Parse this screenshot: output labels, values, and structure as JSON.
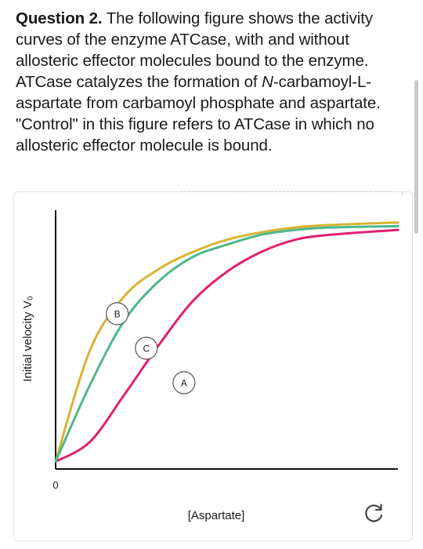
{
  "question": {
    "label": "Question 2.",
    "text_before": " The following figure shows the activity curves of the enzyme ATCase, with and without allosteric effector molecules bound to the enzyme. ATCase catalyzes the formation of ",
    "italic_n": "N",
    "text_after": "-carbamoyl-L-aspartate from carbamoyl phosphate and aspartate. \"Control\" in this figure refers to ATCase in which no allosteric effector molecule is bound."
  },
  "chart_data": {
    "type": "line",
    "title": "",
    "xlabel": "[Aspartate]",
    "ylabel": "Initial velocity V₀",
    "x_tick_labels": [
      "0"
    ],
    "xlim": [
      0,
      10
    ],
    "ylim": [
      0,
      1.05
    ],
    "grid": false,
    "legend": "none",
    "series": [
      {
        "name": "A",
        "color": "#e0206e",
        "x": [
          0,
          1,
          2,
          3,
          4,
          5,
          6,
          7,
          8,
          10
        ],
        "values": [
          0.03,
          0.11,
          0.3,
          0.5,
          0.68,
          0.8,
          0.88,
          0.93,
          0.95,
          0.97
        ]
      },
      {
        "name": "B",
        "color": "#d9b233",
        "x": [
          0,
          1,
          2,
          3,
          4,
          5,
          6,
          7,
          8,
          10
        ],
        "values": [
          0.03,
          0.48,
          0.7,
          0.81,
          0.88,
          0.93,
          0.96,
          0.98,
          0.99,
          1.0
        ]
      },
      {
        "name": "C",
        "color": "#4db88a",
        "x": [
          0,
          1,
          2,
          3,
          4,
          5,
          6,
          7,
          8,
          10
        ],
        "values": [
          0.03,
          0.34,
          0.6,
          0.76,
          0.86,
          0.91,
          0.95,
          0.97,
          0.98,
          0.985
        ]
      }
    ],
    "annotations": [
      {
        "label": "B",
        "x": 1.8,
        "y": 0.63
      },
      {
        "label": "C",
        "x": 2.65,
        "y": 0.49
      },
      {
        "label": "A",
        "x": 3.75,
        "y": 0.35
      }
    ]
  },
  "icons": {
    "refresh": "refresh-icon"
  }
}
